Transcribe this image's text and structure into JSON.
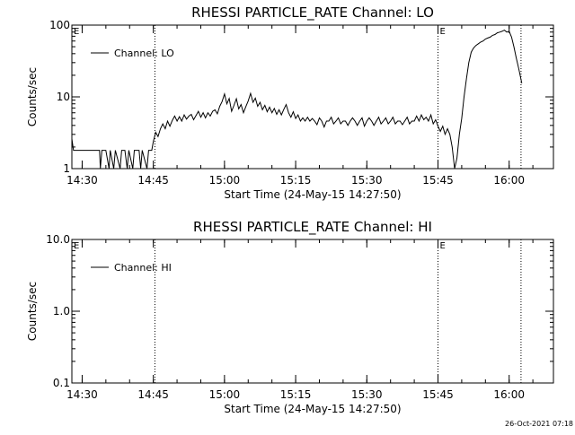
{
  "footer_timestamp": "26-Oct-2021 07:18",
  "chart_data": [
    {
      "type": "line",
      "title": "RHESSI PARTICLE_RATE Channel: LO",
      "xlabel": "Start Time (24-May-15 14:27:50)",
      "ylabel": "Counts/sec",
      "yscale": "log",
      "ylim": [
        1,
        100
      ],
      "yticks": [
        {
          "value": 1,
          "label": "1"
        },
        {
          "value": 10,
          "label": "10"
        },
        {
          "value": 100,
          "label": "100"
        }
      ],
      "xlim": [
        "14:27:50",
        "16:09:20"
      ],
      "xticks": [
        "14:30",
        "14:45",
        "15:00",
        "15:15",
        "15:30",
        "15:45",
        "16:00"
      ],
      "legend": {
        "position": "top-left",
        "entries": [
          "Channel: LO"
        ]
      },
      "grid": false,
      "markers": [
        {
          "time": "14:45:20",
          "style": "dotted",
          "label": ""
        },
        {
          "time": "15:45:00",
          "style": "dotted",
          "label": "E"
        },
        {
          "time": "16:02:30",
          "style": "dotted",
          "label": ""
        }
      ],
      "corner_label": "E",
      "series": [
        {
          "name": "Channel: LO",
          "points": [
            [
              "14:27:50",
              2.6
            ],
            [
              "14:28:10",
              1.8
            ],
            [
              "14:29:00",
              1.8
            ],
            [
              "14:30:00",
              1.8
            ],
            [
              "14:31:00",
              1.8
            ],
            [
              "14:32:00",
              1.8
            ],
            [
              "14:33:00",
              1.8
            ],
            [
              "14:33:40",
              1.8
            ],
            [
              "14:33:50",
              1.0
            ],
            [
              "14:34:10",
              1.8
            ],
            [
              "14:35:00",
              1.8
            ],
            [
              "14:35:40",
              1.0
            ],
            [
              "14:35:55",
              1.8
            ],
            [
              "14:36:40",
              1.0
            ],
            [
              "14:37:00",
              1.8
            ],
            [
              "14:38:00",
              1.0
            ],
            [
              "14:38:20",
              1.8
            ],
            [
              "14:39:00",
              1.8
            ],
            [
              "14:39:30",
              1.0
            ],
            [
              "14:39:50",
              1.8
            ],
            [
              "14:40:40",
              1.0
            ],
            [
              "14:41:00",
              1.8
            ],
            [
              "14:42:00",
              1.8
            ],
            [
              "14:42:20",
              1.0
            ],
            [
              "14:42:40",
              1.8
            ],
            [
              "14:43:40",
              1.0
            ],
            [
              "14:44:00",
              1.8
            ],
            [
              "14:44:40",
              1.8
            ],
            [
              "14:45:00",
              2.4
            ],
            [
              "14:45:30",
              3.2
            ],
            [
              "14:46:00",
              2.8
            ],
            [
              "14:46:30",
              3.6
            ],
            [
              "14:47:00",
              4.2
            ],
            [
              "14:47:30",
              3.6
            ],
            [
              "14:48:00",
              4.6
            ],
            [
              "14:48:30",
              3.9
            ],
            [
              "14:49:00",
              4.7
            ],
            [
              "14:49:30",
              5.4
            ],
            [
              "14:50:00",
              4.6
            ],
            [
              "14:50:30",
              5.3
            ],
            [
              "14:51:00",
              4.6
            ],
            [
              "14:51:30",
              5.6
            ],
            [
              "14:52:00",
              4.9
            ],
            [
              "14:52:30",
              5.4
            ],
            [
              "14:53:00",
              5.7
            ],
            [
              "14:53:30",
              4.8
            ],
            [
              "14:54:00",
              5.5
            ],
            [
              "14:54:30",
              6.3
            ],
            [
              "14:55:00",
              5.2
            ],
            [
              "14:55:30",
              6.0
            ],
            [
              "14:56:00",
              5.1
            ],
            [
              "14:56:30",
              6.0
            ],
            [
              "14:57:00",
              5.4
            ],
            [
              "14:57:30",
              6.3
            ],
            [
              "14:58:00",
              6.6
            ],
            [
              "14:58:30",
              5.8
            ],
            [
              "14:59:00",
              7.4
            ],
            [
              "14:59:30",
              8.6
            ],
            [
              "15:00:00",
              11.0
            ],
            [
              "15:00:30",
              8.0
            ],
            [
              "15:01:00",
              9.5
            ],
            [
              "15:01:30",
              6.3
            ],
            [
              "15:02:00",
              7.6
            ],
            [
              "15:02:30",
              9.4
            ],
            [
              "15:03:00",
              6.8
            ],
            [
              "15:03:30",
              7.8
            ],
            [
              "15:04:00",
              6.0
            ],
            [
              "15:04:30",
              7.3
            ],
            [
              "15:05:00",
              8.8
            ],
            [
              "15:05:30",
              11.2
            ],
            [
              "15:06:00",
              8.4
            ],
            [
              "15:06:30",
              9.6
            ],
            [
              "15:07:00",
              7.4
            ],
            [
              "15:07:30",
              8.4
            ],
            [
              "15:08:00",
              6.6
            ],
            [
              "15:08:30",
              7.6
            ],
            [
              "15:09:00",
              6.2
            ],
            [
              "15:09:30",
              7.2
            ],
            [
              "15:10:00",
              6.0
            ],
            [
              "15:10:30",
              6.9
            ],
            [
              "15:11:00",
              5.7
            ],
            [
              "15:11:30",
              6.6
            ],
            [
              "15:12:00",
              5.6
            ],
            [
              "15:12:30",
              6.7
            ],
            [
              "15:13:00",
              7.8
            ],
            [
              "15:13:30",
              6.0
            ],
            [
              "15:14:00",
              5.2
            ],
            [
              "15:14:30",
              6.2
            ],
            [
              "15:15:00",
              5.0
            ],
            [
              "15:15:30",
              5.6
            ],
            [
              "15:16:00",
              4.6
            ],
            [
              "15:16:30",
              5.1
            ],
            [
              "15:17:00",
              4.6
            ],
            [
              "15:17:30",
              5.2
            ],
            [
              "15:18:00",
              4.6
            ],
            [
              "15:18:30",
              5.0
            ],
            [
              "15:19:00",
              4.6
            ],
            [
              "15:19:30",
              4.1
            ],
            [
              "15:20:00",
              5.1
            ],
            [
              "15:20:30",
              4.6
            ],
            [
              "15:21:00",
              3.8
            ],
            [
              "15:21:30",
              4.6
            ],
            [
              "15:22:00",
              4.6
            ],
            [
              "15:22:30",
              5.2
            ],
            [
              "15:23:00",
              4.2
            ],
            [
              "15:23:30",
              4.6
            ],
            [
              "15:24:00",
              5.1
            ],
            [
              "15:24:30",
              4.2
            ],
            [
              "15:25:00",
              4.6
            ],
            [
              "15:25:30",
              4.6
            ],
            [
              "15:26:00",
              4.0
            ],
            [
              "15:26:30",
              4.6
            ],
            [
              "15:27:00",
              5.1
            ],
            [
              "15:27:30",
              4.6
            ],
            [
              "15:28:00",
              4.0
            ],
            [
              "15:28:30",
              4.6
            ],
            [
              "15:29:00",
              5.1
            ],
            [
              "15:29:30",
              3.9
            ],
            [
              "15:30:00",
              4.6
            ],
            [
              "15:30:30",
              5.1
            ],
            [
              "15:31:00",
              4.6
            ],
            [
              "15:31:30",
              4.0
            ],
            [
              "15:32:00",
              4.6
            ],
            [
              "15:32:30",
              5.2
            ],
            [
              "15:33:00",
              4.2
            ],
            [
              "15:33:30",
              4.6
            ],
            [
              "15:34:00",
              5.1
            ],
            [
              "15:34:30",
              4.2
            ],
            [
              "15:35:00",
              4.6
            ],
            [
              "15:35:30",
              5.2
            ],
            [
              "15:36:00",
              4.2
            ],
            [
              "15:36:30",
              4.6
            ],
            [
              "15:37:00",
              4.6
            ],
            [
              "15:37:30",
              4.1
            ],
            [
              "15:38:00",
              4.6
            ],
            [
              "15:38:30",
              5.2
            ],
            [
              "15:39:00",
              4.2
            ],
            [
              "15:39:30",
              4.6
            ],
            [
              "15:40:00",
              4.6
            ],
            [
              "15:40:30",
              5.4
            ],
            [
              "15:41:00",
              4.6
            ],
            [
              "15:41:30",
              5.6
            ],
            [
              "15:42:00",
              4.8
            ],
            [
              "15:42:30",
              5.2
            ],
            [
              "15:43:00",
              4.6
            ],
            [
              "15:43:30",
              5.6
            ],
            [
              "15:44:00",
              4.2
            ],
            [
              "15:44:30",
              4.8
            ],
            [
              "15:45:00",
              3.9
            ],
            [
              "15:45:30",
              3.3
            ],
            [
              "15:46:00",
              3.9
            ],
            [
              "15:46:30",
              3.0
            ],
            [
              "15:47:00",
              3.6
            ],
            [
              "15:47:30",
              3.0
            ],
            [
              "15:48:00",
              2.0
            ],
            [
              "15:48:30",
              1.0
            ],
            [
              "15:49:00",
              1.4
            ],
            [
              "15:49:30",
              3.0
            ],
            [
              "15:50:00",
              5.0
            ],
            [
              "15:50:30",
              10.0
            ],
            [
              "15:51:00",
              18.0
            ],
            [
              "15:51:30",
              30.0
            ],
            [
              "15:52:00",
              42.0
            ],
            [
              "15:52:30",
              48.0
            ],
            [
              "15:53:00",
              52.0
            ],
            [
              "15:53:30",
              55.0
            ],
            [
              "15:54:00",
              58.0
            ],
            [
              "15:54:30",
              60.0
            ],
            [
              "15:55:00",
              64.0
            ],
            [
              "15:55:30",
              66.0
            ],
            [
              "15:56:00",
              68.0
            ],
            [
              "15:56:30",
              72.0
            ],
            [
              "15:57:00",
              74.0
            ],
            [
              "15:57:30",
              78.0
            ],
            [
              "15:58:00",
              80.0
            ],
            [
              "15:58:30",
              82.0
            ],
            [
              "15:59:00",
              85.0
            ],
            [
              "15:59:30",
              80.0
            ],
            [
              "16:00:00",
              82.0
            ],
            [
              "16:00:30",
              68.0
            ],
            [
              "16:01:00",
              50.0
            ],
            [
              "16:01:30",
              35.0
            ],
            [
              "16:02:00",
              25.0
            ],
            [
              "16:02:40",
              15.5
            ]
          ]
        }
      ]
    },
    {
      "type": "line",
      "title": "RHESSI PARTICLE_RATE Channel: HI",
      "xlabel": "Start Time (24-May-15 14:27:50)",
      "ylabel": "Counts/sec",
      "yscale": "log",
      "ylim": [
        0.1,
        10
      ],
      "yticks": [
        {
          "value": 0.1,
          "label": "0.1"
        },
        {
          "value": 1,
          "label": "1.0"
        },
        {
          "value": 10,
          "label": "10.0"
        }
      ],
      "xlim": [
        "14:27:50",
        "16:09:20"
      ],
      "xticks": [
        "14:30",
        "14:45",
        "15:00",
        "15:15",
        "15:30",
        "15:45",
        "16:00"
      ],
      "legend": {
        "position": "top-left",
        "entries": [
          "Channel: HI"
        ]
      },
      "grid": false,
      "markers": [
        {
          "time": "14:45:20",
          "style": "dotted",
          "label": ""
        },
        {
          "time": "15:45:00",
          "style": "dotted",
          "label": "E"
        },
        {
          "time": "16:02:30",
          "style": "dotted",
          "label": ""
        }
      ],
      "corner_label": "E",
      "series": [
        {
          "name": "Channel: HI",
          "points": []
        }
      ]
    }
  ]
}
